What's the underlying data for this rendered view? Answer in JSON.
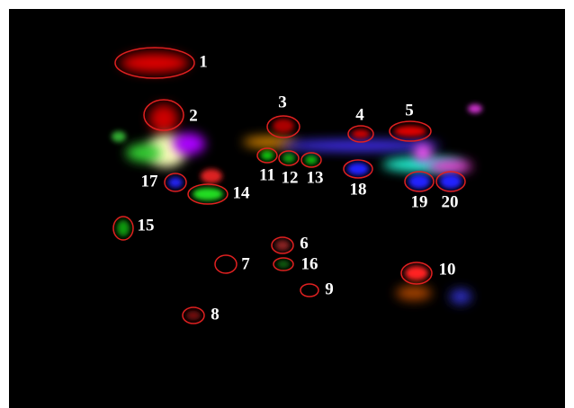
{
  "spots": [
    {
      "label": "1"
    },
    {
      "label": "2"
    },
    {
      "label": "3"
    },
    {
      "label": "4"
    },
    {
      "label": "5"
    },
    {
      "label": "6"
    },
    {
      "label": "7"
    },
    {
      "label": "8"
    },
    {
      "label": "9"
    },
    {
      "label": "10"
    },
    {
      "label": "11"
    },
    {
      "label": "12"
    },
    {
      "label": "13"
    },
    {
      "label": "14"
    },
    {
      "label": "15"
    },
    {
      "label": "16"
    },
    {
      "label": "17"
    },
    {
      "label": "18"
    },
    {
      "label": "19"
    },
    {
      "label": "20"
    }
  ]
}
